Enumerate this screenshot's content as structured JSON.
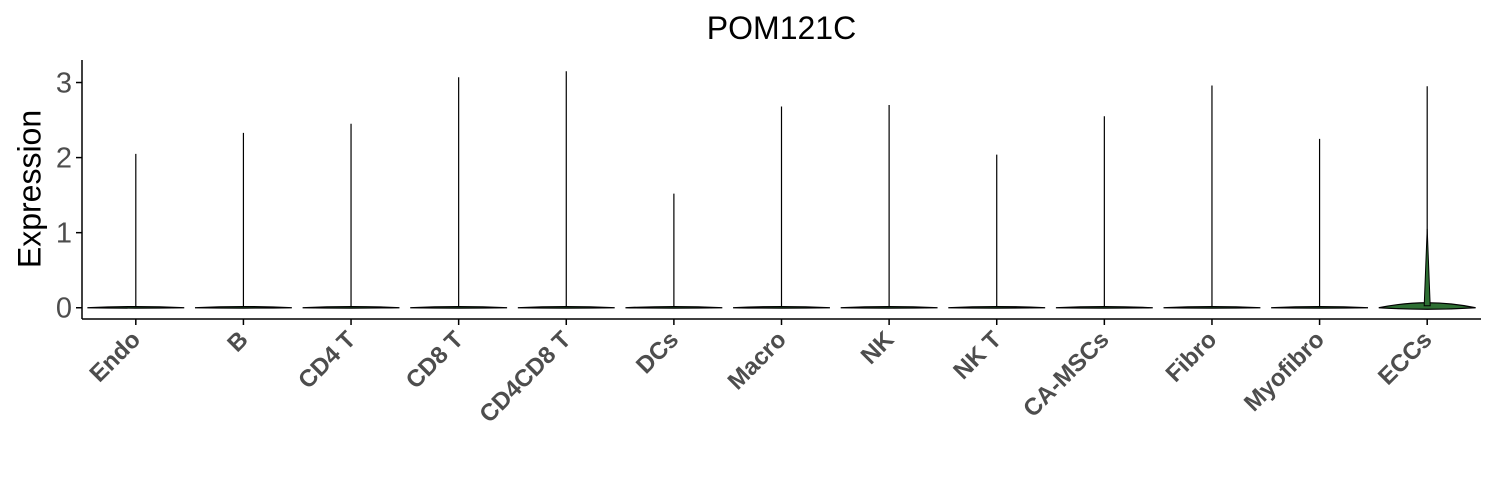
{
  "chart_data": {
    "type": "violin",
    "title": "POM121C",
    "xlabel": "",
    "ylabel": "Expression",
    "ylim": [
      -0.15,
      3.3
    ],
    "yticks": [
      0,
      1,
      2,
      3
    ],
    "grid": false,
    "legend": "none",
    "colors": {
      "violin_fill": "#2e6f33",
      "violin_line": "#000000",
      "axis": "#000000",
      "tick_text": "#4d4d4d"
    },
    "categories": [
      "Endo",
      "B",
      "CD4 T",
      "CD8 T",
      "CD4CD8 T",
      "DCs",
      "Macro",
      "NK",
      "NK T",
      "CA-MSCs",
      "Fibro",
      "Myofibro",
      "ECCs"
    ],
    "series": [
      {
        "max_values": [
          2.05,
          2.33,
          2.45,
          3.07,
          3.15,
          1.52,
          2.68,
          2.7,
          2.04,
          2.55,
          2.96,
          2.25,
          2.95
        ],
        "min_values": [
          0,
          0,
          0,
          0,
          0,
          0,
          0,
          0,
          0,
          0,
          0,
          0,
          0
        ],
        "median_values": [
          0,
          0,
          0,
          0,
          0,
          0,
          0,
          0,
          0,
          0,
          0,
          0,
          0
        ]
      }
    ]
  }
}
